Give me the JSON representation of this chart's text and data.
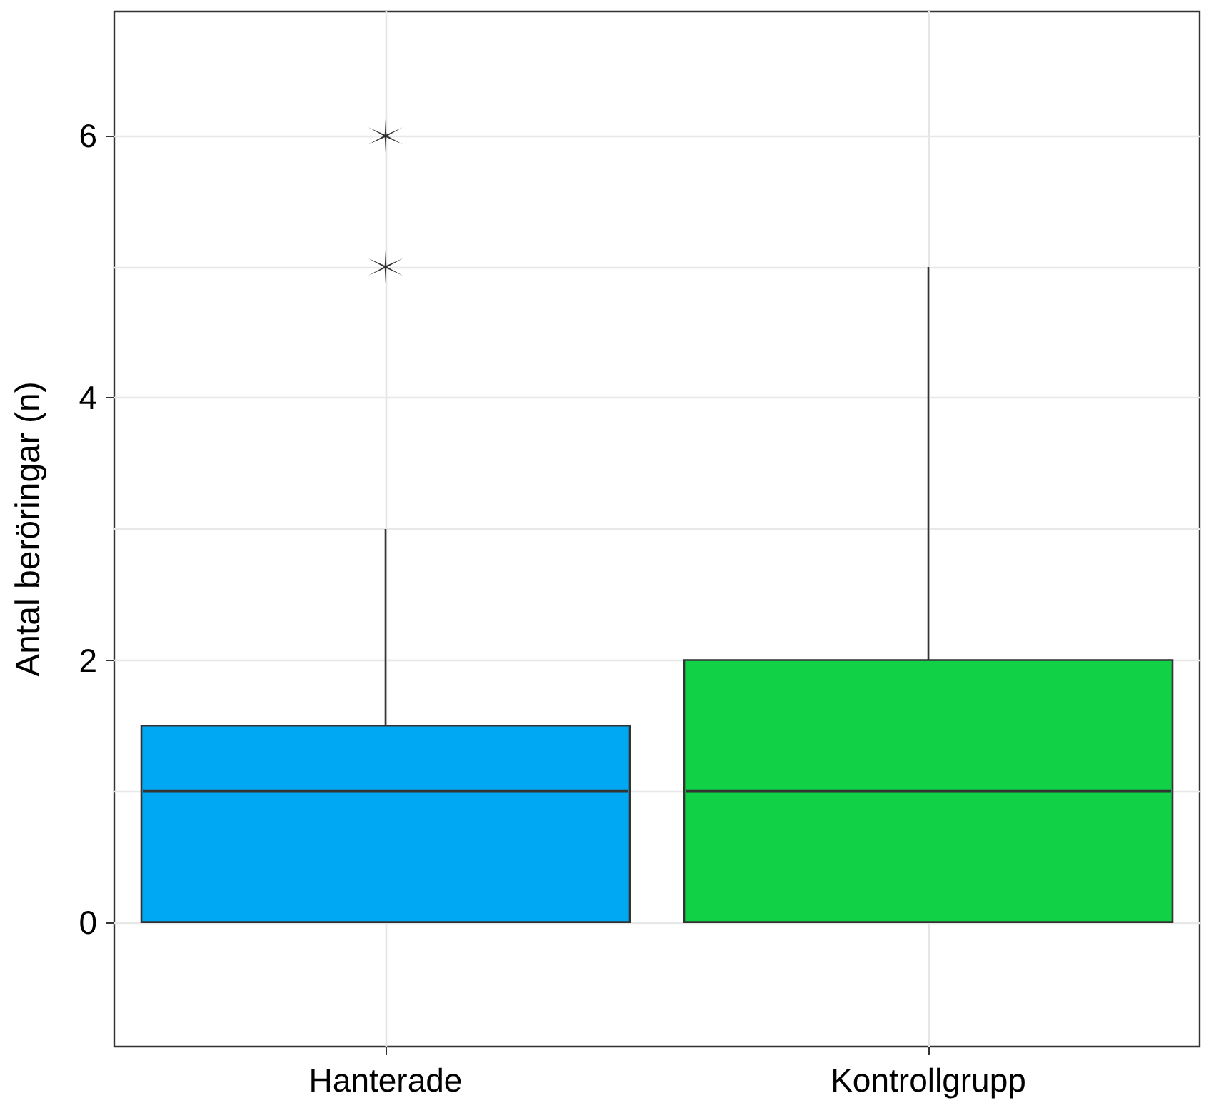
{
  "chart_data": {
    "type": "box",
    "ylabel": "Antal beröringar (n)",
    "categories": [
      "Hanterade",
      "Kontrollgrupp"
    ],
    "colors": [
      "#00a8f3",
      "#11d147"
    ],
    "boxes": [
      {
        "low": 0,
        "q1": 0,
        "median": 1,
        "q3": 1.5,
        "high": 3,
        "outliers": [
          5,
          6
        ]
      },
      {
        "low": 0,
        "q1": 0,
        "median": 1,
        "q3": 2,
        "high": 5
      }
    ],
    "ylim": [
      -0.95,
      6.95
    ],
    "yticks": [
      0,
      {
        "value": 1,
        "label": null
      },
      2,
      {
        "value": 3,
        "label": null
      },
      4,
      {
        "value": 5,
        "label": null
      },
      6
    ],
    "grid": true,
    "marker": "asterisk"
  }
}
